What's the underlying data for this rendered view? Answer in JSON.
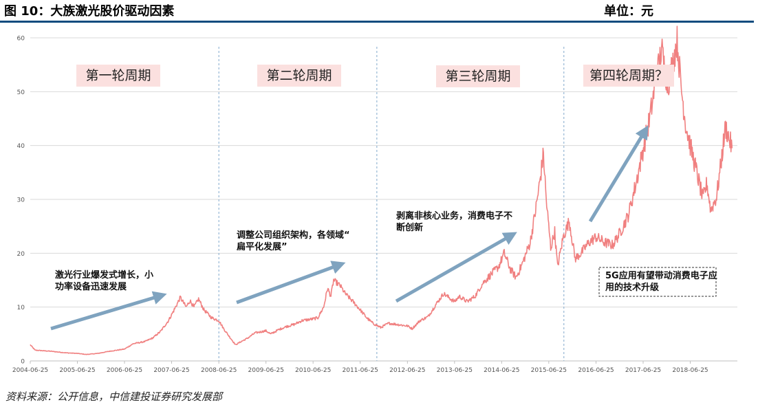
{
  "header": {
    "title": "图 10：大族激光股价驱动因素",
    "unit": "单位：元"
  },
  "source": "资料来源：公开信息，中信建投证券研究发展部",
  "colors": {
    "price_line": "#f08080",
    "arrow": "#7fa3bf",
    "cycle_box": "#fbe0df",
    "divider": "#7fa8cc",
    "grid": "#d9d9d9",
    "title_rule": "#0e4c7e"
  },
  "chart_data": {
    "type": "line",
    "title": "",
    "xlabel": "",
    "ylabel": "",
    "ylim": [
      0,
      60
    ],
    "yticks": [
      0,
      10,
      20,
      30,
      40,
      50,
      60
    ],
    "grid": "horizontal",
    "x_tick_labels": [
      "2004-06-25",
      "2005-06-25",
      "2006-06-25",
      "2007-06-25",
      "2008-06-25",
      "2009-06-25",
      "2010-06-25",
      "2011-06-25",
      "2012-06-25",
      "2013-06-25",
      "2014-06-25",
      "2015-06-25",
      "2016-06-25",
      "2017-06-25",
      "2018-06-25"
    ],
    "xlim": [
      "2004-06-25",
      "2019-06-25"
    ],
    "series": [
      {
        "values": [
          [
            "2004-06-25",
            3.0
          ],
          [
            "2004-08-01",
            2.0
          ],
          [
            "2004-12-01",
            1.8
          ],
          [
            "2005-04-01",
            1.5
          ],
          [
            "2005-06-25",
            1.4
          ],
          [
            "2005-09-01",
            1.2
          ],
          [
            "2005-12-01",
            1.4
          ],
          [
            "2006-03-01",
            1.8
          ],
          [
            "2006-06-25",
            2.2
          ],
          [
            "2006-09-01",
            3.2
          ],
          [
            "2006-12-01",
            3.6
          ],
          [
            "2007-02-01",
            4.3
          ],
          [
            "2007-04-01",
            5.5
          ],
          [
            "2007-06-01",
            7.5
          ],
          [
            "2007-07-15",
            9.5
          ],
          [
            "2007-09-01",
            11.8
          ],
          [
            "2007-10-15",
            10.0
          ],
          [
            "2007-11-15",
            11.2
          ],
          [
            "2007-12-15",
            10.0
          ],
          [
            "2008-01-20",
            11.5
          ],
          [
            "2008-03-01",
            9.5
          ],
          [
            "2008-05-01",
            8.0
          ],
          [
            "2008-06-25",
            7.5
          ],
          [
            "2008-08-01",
            6.0
          ],
          [
            "2008-09-15",
            4.5
          ],
          [
            "2008-11-01",
            3.0
          ],
          [
            "2008-12-15",
            3.6
          ],
          [
            "2009-02-01",
            4.2
          ],
          [
            "2009-04-01",
            5.2
          ],
          [
            "2009-06-25",
            5.6
          ],
          [
            "2009-08-01",
            5.0
          ],
          [
            "2009-10-01",
            5.8
          ],
          [
            "2009-12-01",
            6.4
          ],
          [
            "2010-02-01",
            6.8
          ],
          [
            "2010-04-01",
            7.5
          ],
          [
            "2010-06-25",
            7.8
          ],
          [
            "2010-08-01",
            8.0
          ],
          [
            "2010-09-15",
            10.0
          ],
          [
            "2010-10-15",
            13.5
          ],
          [
            "2010-11-10",
            12.0
          ],
          [
            "2010-12-01",
            15.0
          ],
          [
            "2011-01-20",
            14.0
          ],
          [
            "2011-03-01",
            12.5
          ],
          [
            "2011-05-01",
            11.0
          ],
          [
            "2011-06-25",
            9.5
          ],
          [
            "2011-08-15",
            8.0
          ],
          [
            "2011-10-01",
            7.0
          ],
          [
            "2011-12-01",
            6.2
          ],
          [
            "2012-02-01",
            7.0
          ],
          [
            "2012-04-01",
            6.8
          ],
          [
            "2012-06-25",
            6.5
          ],
          [
            "2012-08-01",
            6.0
          ],
          [
            "2012-10-01",
            7.5
          ],
          [
            "2012-12-01",
            8.2
          ],
          [
            "2013-02-01",
            10.5
          ],
          [
            "2013-04-01",
            12.5
          ],
          [
            "2013-06-25",
            11.0
          ],
          [
            "2013-08-01",
            12.0
          ],
          [
            "2013-10-01",
            11.0
          ],
          [
            "2013-12-01",
            12.0
          ],
          [
            "2014-02-01",
            14.5
          ],
          [
            "2014-04-01",
            16.0
          ],
          [
            "2014-06-01",
            17.5
          ],
          [
            "2014-07-15",
            20.0
          ],
          [
            "2014-09-01",
            17.0
          ],
          [
            "2014-10-15",
            15.5
          ],
          [
            "2014-12-01",
            18.0
          ],
          [
            "2015-02-01",
            22.0
          ],
          [
            "2015-03-15",
            28.0
          ],
          [
            "2015-04-15",
            33.0
          ],
          [
            "2015-05-15",
            38.5
          ],
          [
            "2015-06-05",
            30.0
          ],
          [
            "2015-07-10",
            21.0
          ],
          [
            "2015-08-10",
            24.0
          ],
          [
            "2015-09-01",
            17.5
          ],
          [
            "2015-10-15",
            23.0
          ],
          [
            "2015-12-01",
            26.0
          ],
          [
            "2016-01-15",
            19.0
          ],
          [
            "2016-03-01",
            20.0
          ],
          [
            "2016-05-01",
            22.0
          ],
          [
            "2016-06-25",
            23.0
          ],
          [
            "2016-09-01",
            22.0
          ],
          [
            "2016-11-01",
            21.5
          ],
          [
            "2017-01-01",
            24.0
          ],
          [
            "2017-03-01",
            27.0
          ],
          [
            "2017-05-01",
            33.0
          ],
          [
            "2017-07-01",
            40.0
          ],
          [
            "2017-08-15",
            45.0
          ],
          [
            "2017-10-01",
            52.0
          ],
          [
            "2017-11-15",
            58.0
          ],
          [
            "2018-01-01",
            51.0
          ],
          [
            "2018-02-15",
            56.0
          ],
          [
            "2018-03-15",
            59.5
          ],
          [
            "2018-04-15",
            51.0
          ],
          [
            "2018-05-20",
            44.0
          ],
          [
            "2018-06-25",
            40.0
          ],
          [
            "2018-08-15",
            35.0
          ],
          [
            "2018-10-01",
            30.0
          ],
          [
            "2018-11-01",
            33.0
          ],
          [
            "2018-12-01",
            28.0
          ],
          [
            "2019-01-15",
            30.5
          ],
          [
            "2019-02-25",
            38.0
          ],
          [
            "2019-03-25",
            43.5
          ],
          [
            "2019-04-20",
            41.5
          ],
          [
            "2019-05-15",
            39.5
          ]
        ]
      }
    ],
    "cycles": [
      "第一轮周期",
      "第二轮周期",
      "第三轮周期",
      "第四轮周期？"
    ],
    "cycle_dividers": [
      "2008-06-25",
      "2011-11-01",
      "2015-10-20"
    ],
    "annotations": [
      "激光行业爆发式增长，小功率设备迅速发展",
      "调整公司组织架构，各领域“扁平化发展”",
      "剥离非核心业务，消费电子不断创新",
      "5G应用有望带动消费电子应用的技术升级"
    ]
  }
}
